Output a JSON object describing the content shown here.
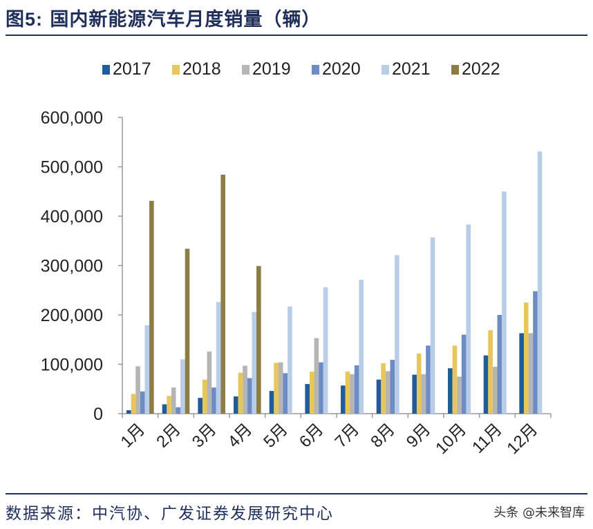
{
  "title": {
    "prefix": "图",
    "number": "5:",
    "text": "国内新能源汽车月度销量（辆）"
  },
  "source": "数据来源：中汽协、广发证券发展研究中心",
  "watermark": "头条 @未来智库",
  "chart_data": {
    "type": "bar",
    "title": "国内新能源汽车月度销量（辆）",
    "xlabel": "",
    "ylabel": "",
    "categories": [
      "1月",
      "2月",
      "3月",
      "4月",
      "5月",
      "6月",
      "7月",
      "8月",
      "9月",
      "10月",
      "11月",
      "12月"
    ],
    "ylim": [
      0,
      600000
    ],
    "yticks": [
      0,
      100000,
      200000,
      300000,
      400000,
      500000,
      600000
    ],
    "ytick_labels": [
      "0",
      "100,000",
      "200,000",
      "300,000",
      "400,000",
      "500,000",
      "600,000"
    ],
    "legend_position": "top",
    "grid": false,
    "series": [
      {
        "name": "2017",
        "color": "#1f5c99",
        "values": [
          7000,
          19000,
          32000,
          35000,
          46000,
          60000,
          57000,
          69000,
          79000,
          92000,
          118000,
          163000
        ]
      },
      {
        "name": "2018",
        "color": "#e8c75a",
        "values": [
          40000,
          36000,
          69000,
          83000,
          103000,
          85000,
          85000,
          102000,
          122000,
          138000,
          169000,
          225000
        ]
      },
      {
        "name": "2019",
        "color": "#b5b5b5",
        "values": [
          96000,
          53000,
          126000,
          97000,
          104000,
          153000,
          80000,
          86000,
          80000,
          75000,
          95000,
          163000
        ]
      },
      {
        "name": "2020",
        "color": "#6d8cc4",
        "values": [
          45000,
          13000,
          53000,
          72000,
          82000,
          104000,
          98000,
          109000,
          138000,
          160000,
          200000,
          248000
        ]
      },
      {
        "name": "2021",
        "color": "#b9cde6",
        "values": [
          179000,
          110000,
          226000,
          206000,
          217000,
          256000,
          271000,
          321000,
          357000,
          383000,
          450000,
          531000
        ]
      },
      {
        "name": "2022",
        "color": "#8c7d44",
        "values": [
          431000,
          334000,
          484000,
          299000,
          null,
          null,
          null,
          null,
          null,
          null,
          null,
          null
        ]
      }
    ]
  }
}
